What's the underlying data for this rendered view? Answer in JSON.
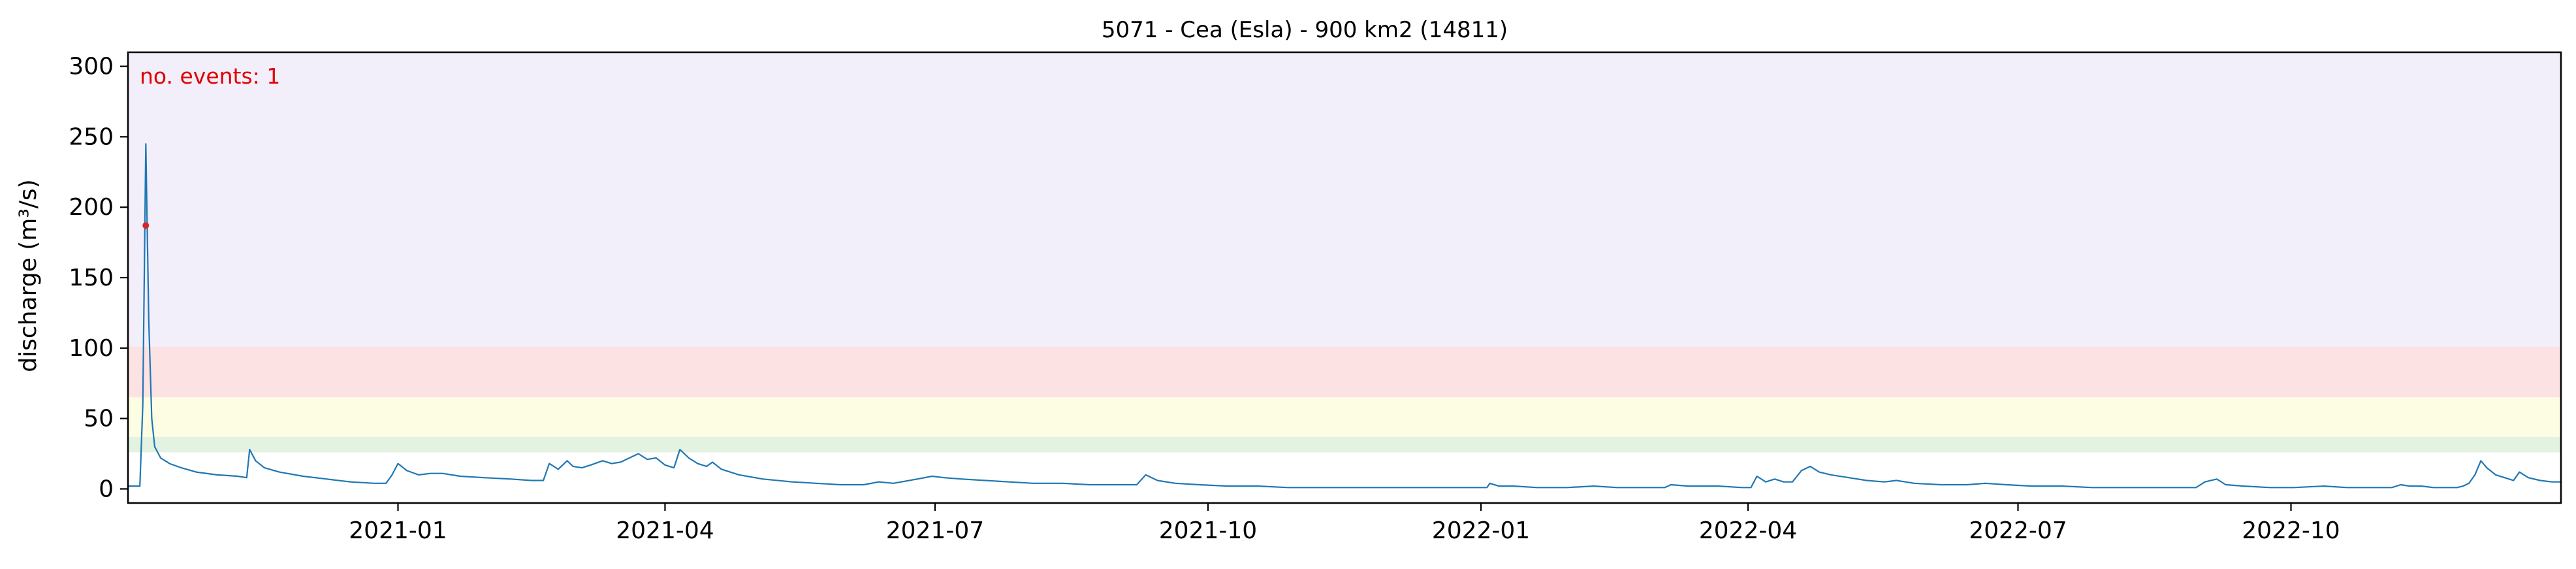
{
  "chart_data": {
    "type": "line",
    "title": "5071 - Cea (Esla) - 900 km2 (14811)",
    "ylabel": "discharge (m³/s)",
    "xlabel": "",
    "annotation": "no. events: 1",
    "xlim": [
      "2020-10-02",
      "2022-12-31"
    ],
    "ylim": [
      -10,
      310
    ],
    "yticks": [
      0,
      50,
      100,
      150,
      200,
      250,
      300
    ],
    "xticks": [
      {
        "date": "2021-01-01",
        "label": "2021-01"
      },
      {
        "date": "2021-04-01",
        "label": "2021-04"
      },
      {
        "date": "2021-07-01",
        "label": "2021-07"
      },
      {
        "date": "2021-10-01",
        "label": "2021-10"
      },
      {
        "date": "2022-01-01",
        "label": "2022-01"
      },
      {
        "date": "2022-04-01",
        "label": "2022-04"
      },
      {
        "date": "2022-07-01",
        "label": "2022-07"
      },
      {
        "date": "2022-10-01",
        "label": "2022-10"
      }
    ],
    "grid": false,
    "threshold_bands": [
      {
        "from": 26,
        "to": 37,
        "color": "#e3f2e1"
      },
      {
        "from": 37,
        "to": 65,
        "color": "#fdfde3"
      },
      {
        "from": 65,
        "to": 101,
        "color": "#fde2e3"
      },
      {
        "from": 101,
        "to": 310,
        "color": "#f2eefa"
      }
    ],
    "series": [
      {
        "color": "#1f77b4",
        "points": [
          [
            "2020-10-02",
            2
          ],
          [
            "2020-10-06",
            2
          ],
          [
            "2020-10-07",
            60
          ],
          [
            "2020-10-08",
            245
          ],
          [
            "2020-10-09",
            120
          ],
          [
            "2020-10-10",
            50
          ],
          [
            "2020-10-11",
            30
          ],
          [
            "2020-10-13",
            22
          ],
          [
            "2020-10-16",
            18
          ],
          [
            "2020-10-20",
            15
          ],
          [
            "2020-10-25",
            12
          ],
          [
            "2020-11-01",
            10
          ],
          [
            "2020-11-08",
            9
          ],
          [
            "2020-11-11",
            8
          ],
          [
            "2020-11-12",
            28
          ],
          [
            "2020-11-14",
            20
          ],
          [
            "2020-11-17",
            15
          ],
          [
            "2020-11-22",
            12
          ],
          [
            "2020-11-30",
            9
          ],
          [
            "2020-12-08",
            7
          ],
          [
            "2020-12-16",
            5
          ],
          [
            "2020-12-24",
            4
          ],
          [
            "2020-12-28",
            4
          ],
          [
            "2020-12-30",
            10
          ],
          [
            "2021-01-01",
            18
          ],
          [
            "2021-01-04",
            13
          ],
          [
            "2021-01-08",
            10
          ],
          [
            "2021-01-12",
            11
          ],
          [
            "2021-01-16",
            11
          ],
          [
            "2021-01-22",
            9
          ],
          [
            "2021-01-30",
            8
          ],
          [
            "2021-02-08",
            7
          ],
          [
            "2021-02-15",
            6
          ],
          [
            "2021-02-19",
            6
          ],
          [
            "2021-02-21",
            18
          ],
          [
            "2021-02-24",
            14
          ],
          [
            "2021-02-27",
            20
          ],
          [
            "2021-03-01",
            16
          ],
          [
            "2021-03-04",
            15
          ],
          [
            "2021-03-07",
            17
          ],
          [
            "2021-03-11",
            20
          ],
          [
            "2021-03-14",
            18
          ],
          [
            "2021-03-17",
            19
          ],
          [
            "2021-03-20",
            22
          ],
          [
            "2021-03-23",
            25
          ],
          [
            "2021-03-26",
            21
          ],
          [
            "2021-03-29",
            22
          ],
          [
            "2021-04-01",
            17
          ],
          [
            "2021-04-04",
            15
          ],
          [
            "2021-04-06",
            28
          ],
          [
            "2021-04-09",
            22
          ],
          [
            "2021-04-12",
            18
          ],
          [
            "2021-04-15",
            16
          ],
          [
            "2021-04-17",
            19
          ],
          [
            "2021-04-20",
            14
          ],
          [
            "2021-04-26",
            10
          ],
          [
            "2021-05-04",
            7
          ],
          [
            "2021-05-14",
            5
          ],
          [
            "2021-05-22",
            4
          ],
          [
            "2021-05-30",
            3
          ],
          [
            "2021-06-07",
            3
          ],
          [
            "2021-06-12",
            5
          ],
          [
            "2021-06-17",
            4
          ],
          [
            "2021-06-25",
            7
          ],
          [
            "2021-06-30",
            9
          ],
          [
            "2021-07-04",
            8
          ],
          [
            "2021-07-10",
            7
          ],
          [
            "2021-07-18",
            6
          ],
          [
            "2021-07-26",
            5
          ],
          [
            "2021-08-03",
            4
          ],
          [
            "2021-08-13",
            4
          ],
          [
            "2021-08-22",
            3
          ],
          [
            "2021-09-01",
            3
          ],
          [
            "2021-09-07",
            3
          ],
          [
            "2021-09-10",
            10
          ],
          [
            "2021-09-14",
            6
          ],
          [
            "2021-09-20",
            4
          ],
          [
            "2021-09-28",
            3
          ],
          [
            "2021-10-08",
            2
          ],
          [
            "2021-10-18",
            2
          ],
          [
            "2021-10-28",
            1
          ],
          [
            "2021-11-07",
            1
          ],
          [
            "2021-11-17",
            1
          ],
          [
            "2021-11-27",
            1
          ],
          [
            "2021-12-06",
            1
          ],
          [
            "2021-12-16",
            1
          ],
          [
            "2021-12-26",
            1
          ],
          [
            "2022-01-03",
            1
          ],
          [
            "2022-01-04",
            4
          ],
          [
            "2022-01-07",
            2
          ],
          [
            "2022-01-12",
            2
          ],
          [
            "2022-01-20",
            1
          ],
          [
            "2022-01-30",
            1
          ],
          [
            "2022-02-08",
            2
          ],
          [
            "2022-02-16",
            1
          ],
          [
            "2022-02-26",
            1
          ],
          [
            "2022-03-04",
            1
          ],
          [
            "2022-03-06",
            3
          ],
          [
            "2022-03-12",
            2
          ],
          [
            "2022-03-22",
            2
          ],
          [
            "2022-03-30",
            1
          ],
          [
            "2022-04-02",
            1
          ],
          [
            "2022-04-04",
            9
          ],
          [
            "2022-04-07",
            5
          ],
          [
            "2022-04-10",
            7
          ],
          [
            "2022-04-13",
            5
          ],
          [
            "2022-04-16",
            5
          ],
          [
            "2022-04-19",
            13
          ],
          [
            "2022-04-22",
            16
          ],
          [
            "2022-04-25",
            12
          ],
          [
            "2022-04-29",
            10
          ],
          [
            "2022-05-05",
            8
          ],
          [
            "2022-05-11",
            6
          ],
          [
            "2022-05-17",
            5
          ],
          [
            "2022-05-21",
            6
          ],
          [
            "2022-05-27",
            4
          ],
          [
            "2022-06-05",
            3
          ],
          [
            "2022-06-14",
            3
          ],
          [
            "2022-06-20",
            4
          ],
          [
            "2022-06-27",
            3
          ],
          [
            "2022-07-06",
            2
          ],
          [
            "2022-07-16",
            2
          ],
          [
            "2022-07-26",
            1
          ],
          [
            "2022-08-04",
            1
          ],
          [
            "2022-08-14",
            1
          ],
          [
            "2022-08-24",
            1
          ],
          [
            "2022-08-30",
            1
          ],
          [
            "2022-09-02",
            5
          ],
          [
            "2022-09-06",
            7
          ],
          [
            "2022-09-09",
            3
          ],
          [
            "2022-09-15",
            2
          ],
          [
            "2022-09-24",
            1
          ],
          [
            "2022-10-02",
            1
          ],
          [
            "2022-10-12",
            2
          ],
          [
            "2022-10-20",
            1
          ],
          [
            "2022-10-30",
            1
          ],
          [
            "2022-11-04",
            1
          ],
          [
            "2022-11-07",
            3
          ],
          [
            "2022-11-10",
            2
          ],
          [
            "2022-11-14",
            2
          ],
          [
            "2022-11-18",
            1
          ],
          [
            "2022-11-26",
            1
          ],
          [
            "2022-11-28",
            2
          ],
          [
            "2022-11-30",
            4
          ],
          [
            "2022-12-02",
            10
          ],
          [
            "2022-12-04",
            20
          ],
          [
            "2022-12-06",
            15
          ],
          [
            "2022-12-09",
            10
          ],
          [
            "2022-12-12",
            8
          ],
          [
            "2022-12-15",
            6
          ],
          [
            "2022-12-17",
            12
          ],
          [
            "2022-12-20",
            8
          ],
          [
            "2022-12-24",
            6
          ],
          [
            "2022-12-28",
            5
          ],
          [
            "2022-12-31",
            5
          ]
        ]
      }
    ],
    "events": [
      {
        "date": "2020-10-08",
        "value": 187,
        "color": "#d62728"
      }
    ]
  }
}
